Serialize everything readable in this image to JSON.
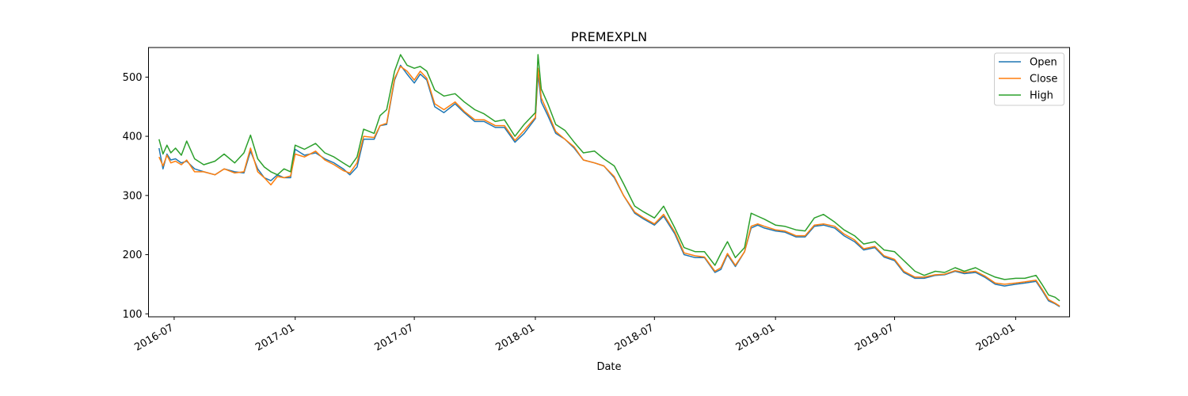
{
  "chart_data": {
    "type": "line",
    "title": "PREMEXPLN",
    "xlabel": "Date",
    "ylabel": "",
    "ylim": [
      95,
      550
    ],
    "xlim": [
      "2016-05-23",
      "2020-03-23"
    ],
    "yticks": [
      100,
      200,
      300,
      400,
      500
    ],
    "xticks": [
      "2016-07",
      "2017-01",
      "2017-07",
      "2018-01",
      "2018-07",
      "2019-01",
      "2019-07",
      "2020-01"
    ],
    "grid": false,
    "legend": "top-right",
    "series": [
      {
        "name": "Open",
        "color": "#1f77b4"
      },
      {
        "name": "Close",
        "color": "#ff7f0e"
      },
      {
        "name": "High",
        "color": "#2ca02c"
      }
    ],
    "x": [
      "2016-06-08",
      "2016-06-14",
      "2016-06-20",
      "2016-06-26",
      "2016-07-03",
      "2016-07-12",
      "2016-07-20",
      "2016-08-01",
      "2016-08-15",
      "2016-09-01",
      "2016-09-15",
      "2016-10-01",
      "2016-10-15",
      "2016-10-25",
      "2016-11-05",
      "2016-11-15",
      "2016-11-25",
      "2016-12-05",
      "2016-12-15",
      "2016-12-25",
      "2017-01-01",
      "2017-01-15",
      "2017-02-01",
      "2017-02-15",
      "2017-03-01",
      "2017-03-15",
      "2017-03-25",
      "2017-04-05",
      "2017-04-15",
      "2017-05-01",
      "2017-05-10",
      "2017-05-20",
      "2017-06-01",
      "2017-06-10",
      "2017-06-20",
      "2017-07-01",
      "2017-07-10",
      "2017-07-20",
      "2017-08-01",
      "2017-08-15",
      "2017-09-01",
      "2017-09-15",
      "2017-10-01",
      "2017-10-15",
      "2017-11-01",
      "2017-11-15",
      "2017-12-01",
      "2017-12-15",
      "2018-01-01",
      "2018-01-05",
      "2018-01-10",
      "2018-01-20",
      "2018-02-01",
      "2018-02-15",
      "2018-03-01",
      "2018-03-15",
      "2018-04-01",
      "2018-04-15",
      "2018-05-01",
      "2018-05-15",
      "2018-06-01",
      "2018-06-15",
      "2018-07-01",
      "2018-07-15",
      "2018-08-01",
      "2018-08-15",
      "2018-09-01",
      "2018-09-15",
      "2018-10-01",
      "2018-10-10",
      "2018-10-20",
      "2018-11-01",
      "2018-11-15",
      "2018-11-25",
      "2018-12-05",
      "2018-12-15",
      "2019-01-01",
      "2019-01-15",
      "2019-02-01",
      "2019-02-15",
      "2019-03-01",
      "2019-03-15",
      "2019-04-01",
      "2019-04-15",
      "2019-05-01",
      "2019-05-15",
      "2019-06-01",
      "2019-06-15",
      "2019-07-01",
      "2019-07-15",
      "2019-08-01",
      "2019-08-15",
      "2019-09-01",
      "2019-09-15",
      "2019-10-01",
      "2019-10-15",
      "2019-11-01",
      "2019-11-15",
      "2019-12-01",
      "2019-12-15",
      "2020-01-01",
      "2020-01-15",
      "2020-02-01",
      "2020-02-10",
      "2020-02-20",
      "2020-03-01",
      "2020-03-08"
    ],
    "high": [
      395,
      370,
      385,
      372,
      380,
      368,
      392,
      362,
      352,
      358,
      370,
      355,
      372,
      402,
      362,
      348,
      340,
      335,
      345,
      340,
      385,
      378,
      388,
      372,
      365,
      355,
      348,
      365,
      412,
      405,
      435,
      445,
      510,
      538,
      520,
      515,
      518,
      510,
      478,
      468,
      472,
      458,
      445,
      438,
      425,
      428,
      400,
      420,
      440,
      538,
      480,
      455,
      420,
      410,
      390,
      372,
      375,
      362,
      350,
      320,
      282,
      272,
      262,
      282,
      245,
      212,
      205,
      205,
      182,
      202,
      222,
      195,
      212,
      270,
      265,
      260,
      250,
      248,
      242,
      240,
      262,
      268,
      255,
      242,
      232,
      218,
      222,
      208,
      205,
      190,
      172,
      165,
      172,
      170,
      178,
      172,
      178,
      170,
      162,
      158,
      160,
      160,
      165,
      150,
      132,
      128,
      122
    ],
    "open": [
      380,
      345,
      370,
      360,
      362,
      355,
      358,
      345,
      340,
      335,
      345,
      340,
      338,
      375,
      345,
      330,
      325,
      335,
      330,
      330,
      378,
      368,
      372,
      362,
      355,
      345,
      335,
      348,
      395,
      395,
      418,
      420,
      495,
      520,
      505,
      490,
      505,
      495,
      450,
      440,
      455,
      440,
      425,
      425,
      415,
      415,
      390,
      405,
      430,
      505,
      458,
      435,
      405,
      395,
      380,
      360,
      355,
      350,
      330,
      300,
      270,
      260,
      250,
      265,
      235,
      200,
      195,
      195,
      170,
      175,
      200,
      180,
      205,
      245,
      250,
      245,
      240,
      238,
      230,
      230,
      248,
      250,
      245,
      232,
      222,
      208,
      212,
      196,
      190,
      170,
      160,
      160,
      165,
      166,
      172,
      168,
      170,
      162,
      150,
      147,
      150,
      152,
      155,
      140,
      122,
      117,
      112
    ],
    "close": [
      365,
      350,
      368,
      355,
      358,
      352,
      360,
      340,
      340,
      335,
      345,
      338,
      340,
      380,
      340,
      330,
      318,
      332,
      330,
      333,
      370,
      365,
      375,
      360,
      352,
      342,
      338,
      355,
      400,
      398,
      418,
      422,
      498,
      518,
      510,
      495,
      510,
      498,
      455,
      445,
      458,
      442,
      428,
      428,
      418,
      418,
      393,
      410,
      432,
      515,
      465,
      440,
      408,
      395,
      382,
      360,
      355,
      350,
      332,
      300,
      272,
      262,
      252,
      268,
      238,
      203,
      198,
      196,
      172,
      178,
      202,
      182,
      205,
      248,
      252,
      248,
      242,
      240,
      232,
      232,
      250,
      252,
      248,
      235,
      225,
      210,
      214,
      198,
      192,
      172,
      162,
      162,
      166,
      167,
      173,
      170,
      172,
      164,
      152,
      150,
      152,
      154,
      157,
      142,
      124,
      118,
      113
    ]
  }
}
